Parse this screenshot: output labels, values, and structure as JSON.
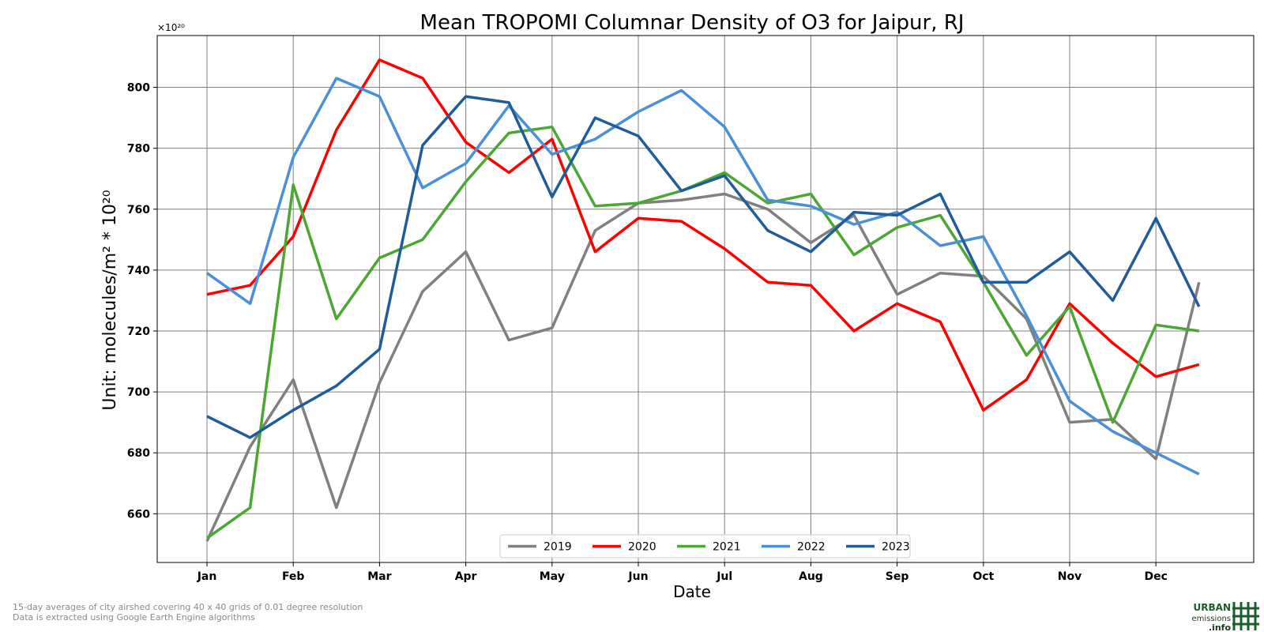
{
  "chart_data": {
    "type": "line",
    "title": "Mean TROPOMI Columnar Density of O3 for Jaipur, RJ",
    "xlabel": "Date",
    "ylabel": "Unit: molecules/m² * 10²⁰",
    "y_multiplier_label": "×10²⁰",
    "ylim": [
      644,
      817
    ],
    "yticks": [
      660,
      680,
      700,
      720,
      740,
      760,
      780,
      800
    ],
    "month_ticks": [
      "Jan",
      "Feb",
      "Mar",
      "Apr",
      "May",
      "Jun",
      "Jul",
      "Aug",
      "Sep",
      "Oct",
      "Nov",
      "Dec"
    ],
    "grid": true,
    "legend_position": "bottom-center",
    "x_points": [
      "Jan",
      "Jan (16-31)",
      "Feb",
      "Feb (16-29)",
      "Mar",
      "Mar (16-31)",
      "Apr",
      "Apr (16-30)",
      "May",
      "May (16-31)",
      "Jun",
      "Jun (16-30)",
      "Jul",
      "Jul (16-31)",
      "Aug",
      "Aug (16-31)",
      "Sep",
      "Sep (16-30)",
      "Oct",
      "Oct (16-31)",
      "Nov",
      "Nov (16-30)",
      "Dec",
      "Dec (16-31)"
    ],
    "series": [
      {
        "name": "2019",
        "color": "#808080",
        "values": [
          651,
          682,
          704,
          662,
          703,
          733,
          746,
          717,
          721,
          753,
          762,
          763,
          765,
          760,
          749,
          758,
          732,
          739,
          738,
          724,
          690,
          691,
          678,
          736
        ]
      },
      {
        "name": "2020",
        "color": "#ff0000",
        "values": [
          732,
          735,
          751,
          786,
          809,
          803,
          782,
          772,
          783,
          746,
          757,
          756,
          747,
          736,
          735,
          720,
          729,
          723,
          694,
          704,
          729,
          716,
          705,
          709
        ]
      },
      {
        "name": "2021",
        "color": "#4aa832",
        "values": [
          652,
          662,
          768,
          724,
          744,
          750,
          769,
          785,
          787,
          761,
          762,
          766,
          772,
          762,
          765,
          745,
          754,
          758,
          736,
          712,
          728,
          690,
          722,
          720
        ]
      },
      {
        "name": "2022",
        "color": "#4a90d9",
        "values": [
          739,
          729,
          777,
          803,
          797,
          767,
          775,
          794,
          778,
          783,
          792,
          799,
          787,
          763,
          761,
          755,
          759,
          748,
          751,
          725,
          697,
          687,
          680,
          673
        ]
      },
      {
        "name": "2023",
        "color": "#1f5c99",
        "values": [
          692,
          685,
          694,
          702,
          714,
          781,
          797,
          795,
          764,
          790,
          784,
          766,
          771,
          753,
          746,
          759,
          758,
          765,
          736,
          736,
          746,
          730,
          757,
          728
        ]
      }
    ]
  },
  "footnote": {
    "line1": "15-day averages of city airshed covering 40 x 40 grids of 0.01 degree resolution",
    "line2": "Data is extracted using Google Earth Engine algorithms"
  },
  "logo": {
    "line1": "URBAN",
    "line2": "emissions",
    "line3": ".info"
  }
}
